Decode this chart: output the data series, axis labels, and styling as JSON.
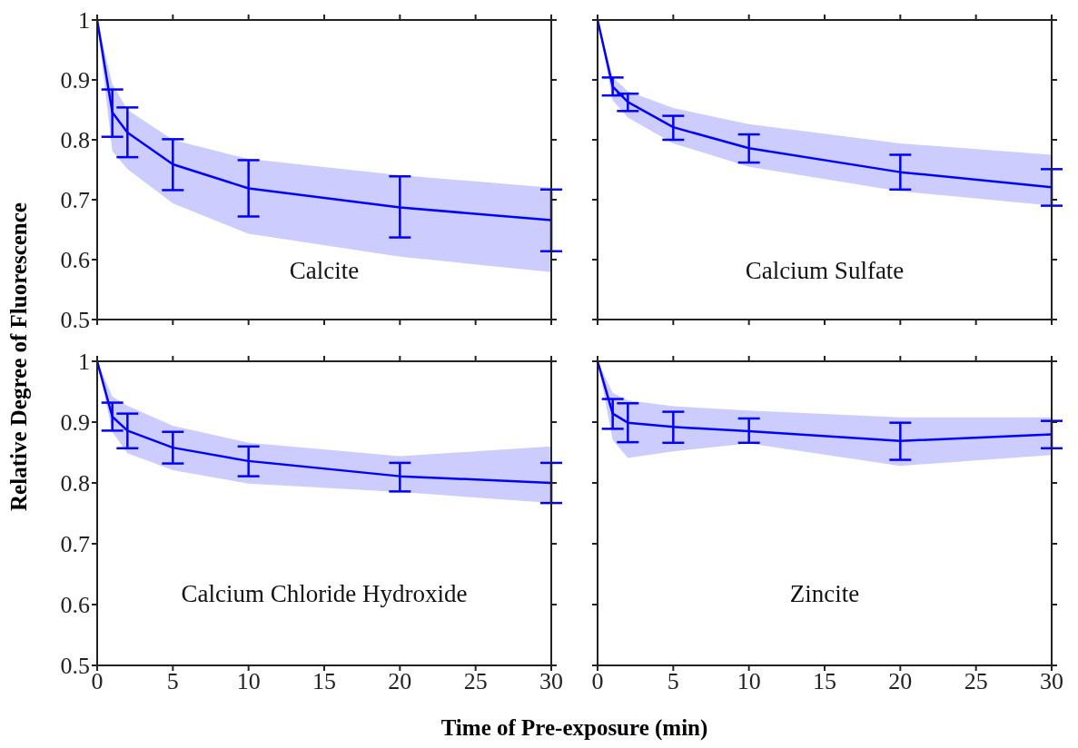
{
  "chart_data": [
    {
      "type": "line",
      "ylabel": "Relative Degree of Fluorescence",
      "annotations": [
        "Calcite"
      ],
      "x": [
        0,
        1,
        2,
        5,
        10,
        20,
        30
      ],
      "xlim": [
        0,
        30
      ],
      "xticks": [
        0,
        5,
        10,
        15,
        20,
        25,
        30
      ],
      "ylim": [
        0.5,
        1
      ],
      "yticks": [
        0.5,
        0.6,
        0.7,
        0.8,
        0.9,
        1
      ],
      "tick_labels": "y",
      "marker": "none",
      "line_style": "solid",
      "series": [
        {
          "color": "#0000ff",
          "values": [
            1,
            0.846,
            0.812,
            0.759,
            0.719,
            0.687,
            0.666
          ],
          "errors": [
            null,
            [
              0.805,
              0.884
            ],
            [
              0.771,
              0.854
            ],
            [
              0.716,
              0.801
            ],
            [
              0.672,
              0.766
            ],
            [
              0.637,
              0.739
            ],
            [
              0.614,
              0.717
            ]
          ],
          "lower": [
            1,
            0.781,
            0.751,
            0.694,
            0.643,
            0.605,
            0.579
          ],
          "upper": [
            1,
            0.893,
            0.85,
            0.8,
            0.768,
            0.741,
            0.72
          ]
        }
      ]
    },
    {
      "type": "line",
      "annotations": [
        "Calcium Sulfate"
      ],
      "x": [
        0,
        1,
        2,
        5,
        10,
        20,
        30
      ],
      "xlim": [
        0,
        30
      ],
      "xticks": [
        0,
        5,
        10,
        15,
        20,
        25,
        30
      ],
      "ylim": [
        0.5,
        1
      ],
      "yticks": [
        0.5,
        0.6,
        0.7,
        0.8,
        0.9,
        1
      ],
      "tick_labels": false,
      "marker": "none",
      "line_style": "solid",
      "series": [
        {
          "color": "#0000ff",
          "values": [
            1,
            0.889,
            0.863,
            0.821,
            0.786,
            0.746,
            0.721
          ],
          "errors": [
            null,
            [
              0.874,
              0.904
            ],
            [
              0.848,
              0.877
            ],
            [
              0.8,
              0.84
            ],
            [
              0.762,
              0.809
            ],
            [
              0.717,
              0.775
            ],
            [
              0.69,
              0.751
            ]
          ],
          "lower": [
            1,
            0.866,
            0.837,
            0.794,
            0.755,
            0.714,
            0.69
          ],
          "upper": [
            1,
            0.904,
            0.881,
            0.853,
            0.826,
            0.794,
            0.775
          ]
        }
      ]
    },
    {
      "type": "line",
      "xlabel": "Time of Pre-exposure (min)",
      "annotations": [
        "Calcium Chloride Hydroxide"
      ],
      "x": [
        0,
        1,
        2,
        5,
        10,
        20,
        30
      ],
      "xlim": [
        0,
        30
      ],
      "xticks": [
        0,
        5,
        10,
        15,
        20,
        25,
        30
      ],
      "ylim": [
        0.5,
        1
      ],
      "yticks": [
        0.5,
        0.6,
        0.7,
        0.8,
        0.9,
        1
      ],
      "marker": "none",
      "line_style": "solid",
      "series": [
        {
          "color": "#0000ff",
          "values": [
            1,
            0.909,
            0.886,
            0.858,
            0.836,
            0.811,
            0.8
          ],
          "errors": [
            null,
            [
              0.886,
              0.932
            ],
            [
              0.857,
              0.914
            ],
            [
              0.832,
              0.884
            ],
            [
              0.811,
              0.86
            ],
            [
              0.786,
              0.833
            ],
            [
              0.767,
              0.833
            ]
          ],
          "lower": [
            1,
            0.884,
            0.849,
            0.821,
            0.799,
            0.785,
            0.767
          ],
          "upper": [
            1,
            0.942,
            0.927,
            0.894,
            0.866,
            0.844,
            0.86
          ]
        }
      ]
    },
    {
      "type": "line",
      "annotations": [
        "Zincite"
      ],
      "x": [
        0,
        1,
        2,
        5,
        10,
        20,
        30
      ],
      "xlim": [
        0,
        30
      ],
      "xticks": [
        0,
        5,
        10,
        15,
        20,
        25,
        30
      ],
      "ylim": [
        0.5,
        1
      ],
      "yticks": [
        0.5,
        0.6,
        0.7,
        0.8,
        0.9,
        1
      ],
      "tick_labels": "x",
      "marker": "none",
      "line_style": "solid",
      "series": [
        {
          "color": "#0000ff",
          "values": [
            1,
            0.914,
            0.899,
            0.892,
            0.885,
            0.869,
            0.88
          ],
          "errors": [
            null,
            [
              0.889,
              0.938
            ],
            [
              0.867,
              0.931
            ],
            [
              0.866,
              0.917
            ],
            [
              0.866,
              0.906
            ],
            [
              0.838,
              0.899
            ],
            [
              0.857,
              0.902
            ]
          ],
          "lower": [
            1,
            0.871,
            0.841,
            0.852,
            0.865,
            0.828,
            0.846
          ],
          "upper": [
            1,
            0.948,
            0.936,
            0.926,
            0.919,
            0.908,
            0.908
          ]
        }
      ]
    }
  ]
}
